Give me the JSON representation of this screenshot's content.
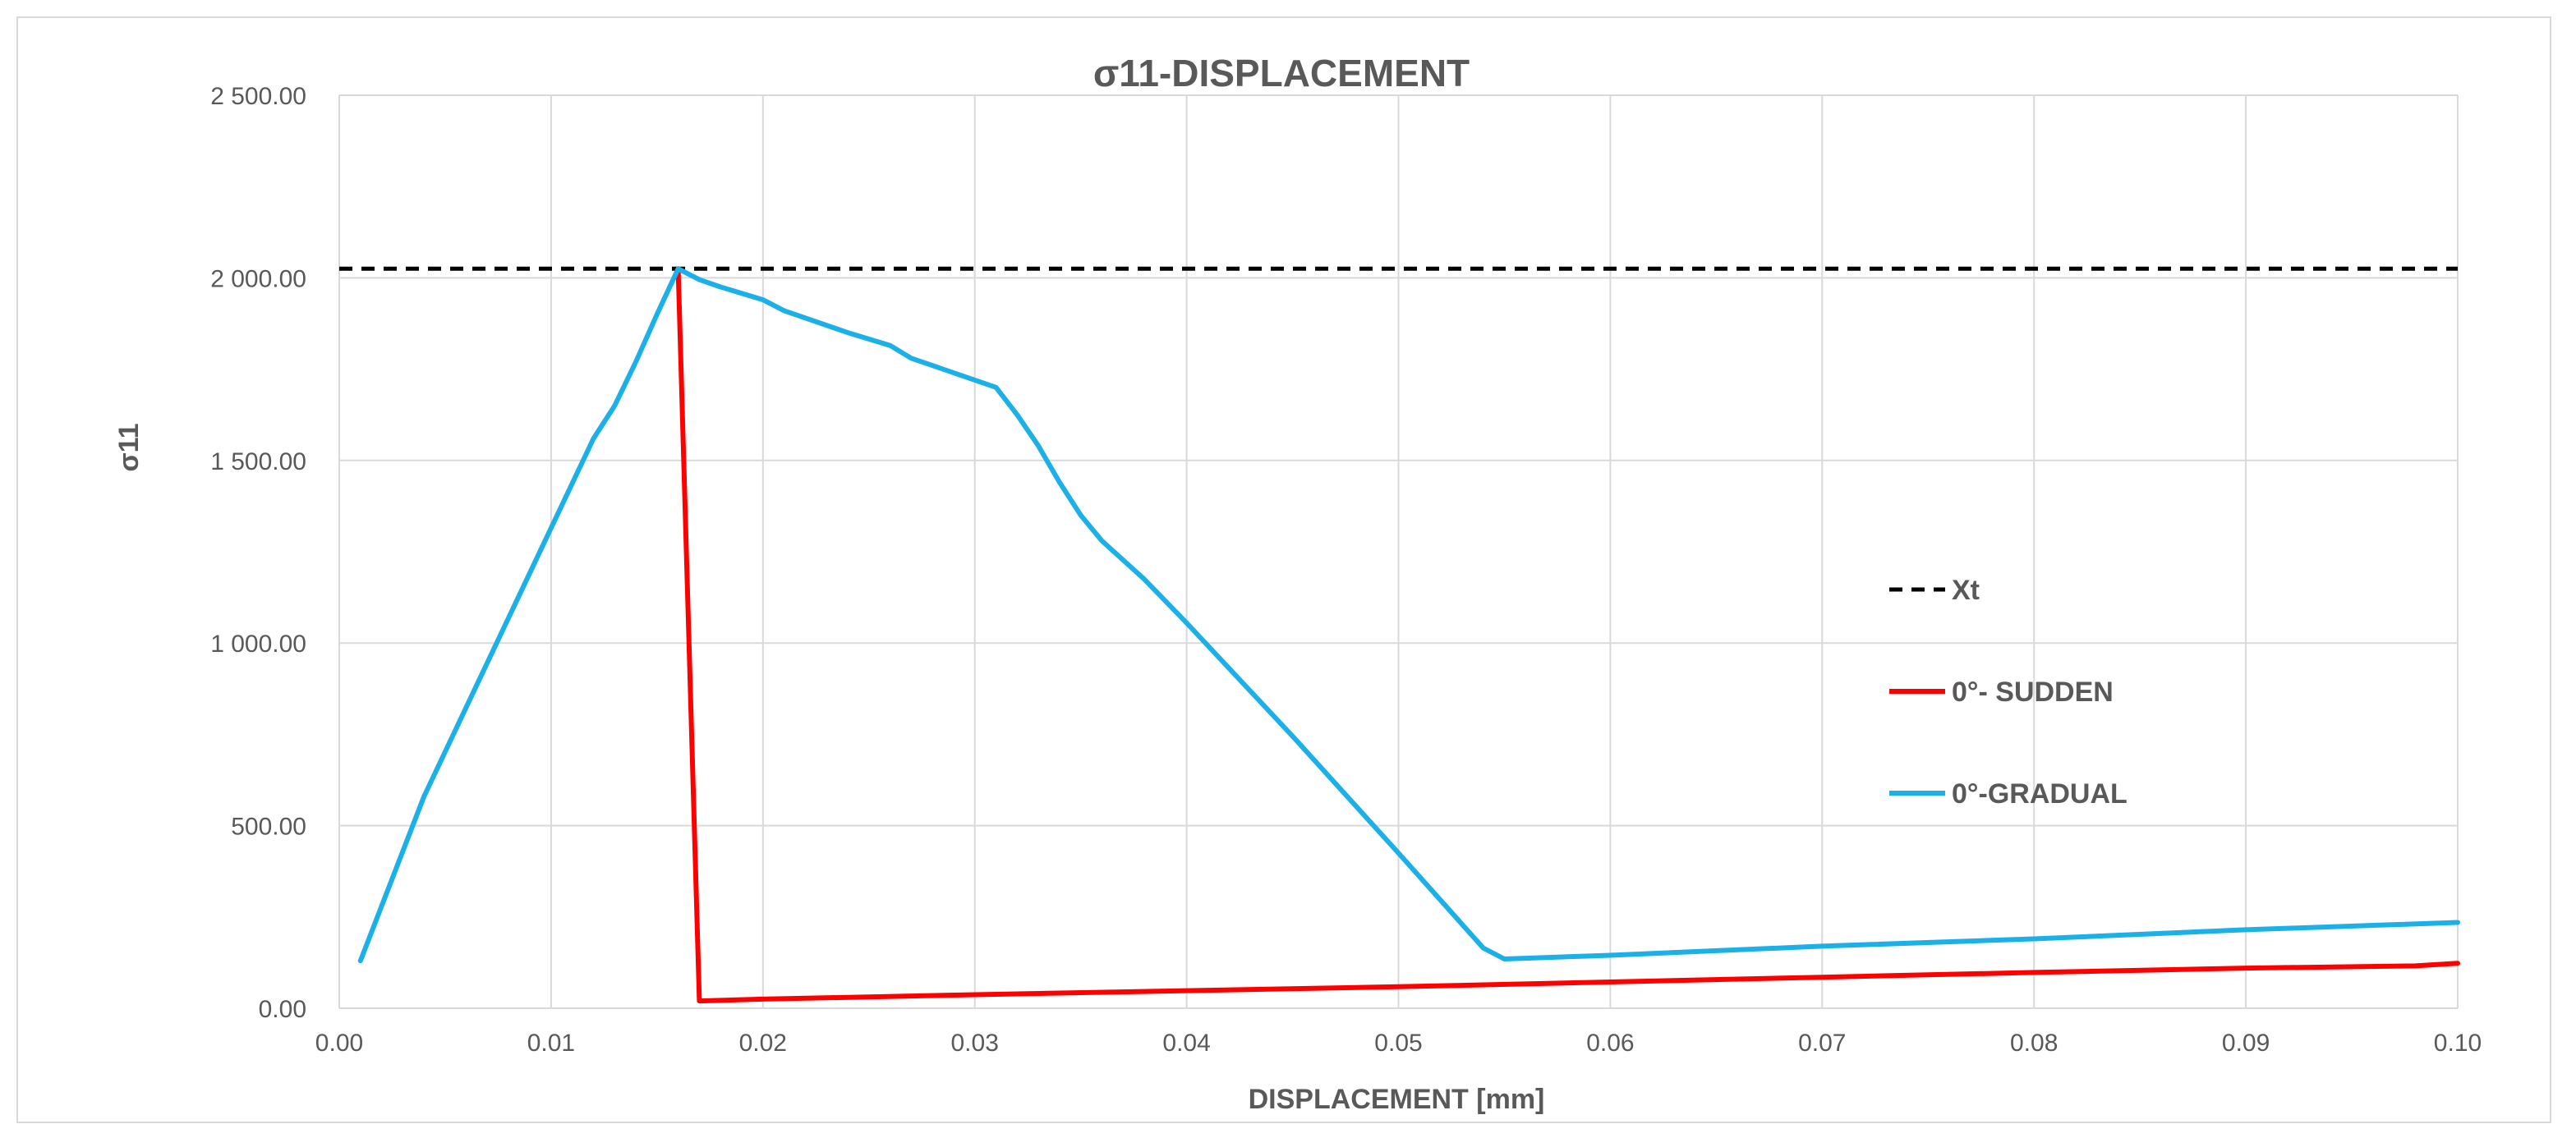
{
  "chart_data": {
    "type": "line",
    "title": "σ11-DISPLACEMENT",
    "xlabel": "DISPLACEMENT [mm]",
    "ylabel": "σ11",
    "xlim": [
      0,
      0.1
    ],
    "ylim": [
      0,
      2500
    ],
    "x_ticks": [
      0,
      0.01,
      0.02,
      0.03,
      0.04,
      0.05,
      0.06,
      0.07,
      0.08,
      0.09,
      0.1
    ],
    "x_tick_labels": [
      "0.00",
      "0.01",
      "0.02",
      "0.03",
      "0.04",
      "0.05",
      "0.06",
      "0.07",
      "0.08",
      "0.09",
      "0.10"
    ],
    "y_ticks": [
      0,
      500,
      1000,
      1500,
      2000,
      2500
    ],
    "y_tick_labels": [
      "0.00",
      "500.00",
      "1 000.00",
      "1 500.00",
      "2 000.00",
      "2 500.00"
    ],
    "grid": "vertical and horizontal",
    "legend_position": "right",
    "series": [
      {
        "name": "Xt",
        "color": "#000000",
        "style": "dashed",
        "x": [
          0,
          0.1
        ],
        "y": [
          2025,
          2025
        ]
      },
      {
        "name": "0°- SUDDEN",
        "color": "#ff0000",
        "style": "solid",
        "x": [
          0.016,
          0.017,
          0.02,
          0.03,
          0.04,
          0.05,
          0.06,
          0.07,
          0.08,
          0.09,
          0.098,
          0.1
        ],
        "y": [
          2025,
          20,
          25,
          37,
          48,
          59,
          72,
          85,
          98,
          110,
          116,
          123
        ]
      },
      {
        "name": "0°-GRADUAL",
        "color": "#1cb0e8",
        "style": "solid",
        "x": [
          0.001,
          0.004,
          0.008,
          0.012,
          0.013,
          0.014,
          0.015,
          0.016,
          0.017,
          0.018,
          0.02,
          0.021,
          0.024,
          0.026,
          0.027,
          0.03,
          0.031,
          0.032,
          0.033,
          0.034,
          0.035,
          0.036,
          0.038,
          0.04,
          0.045,
          0.05,
          0.054,
          0.055,
          0.06,
          0.07,
          0.08,
          0.09,
          0.1
        ],
        "y": [
          130,
          580,
          1070,
          1560,
          1650,
          1770,
          1900,
          2025,
          1995,
          1975,
          1940,
          1910,
          1850,
          1815,
          1780,
          1720,
          1700,
          1625,
          1540,
          1440,
          1350,
          1280,
          1175,
          1055,
          745,
          425,
          165,
          135,
          145,
          170,
          190,
          215,
          235
        ]
      }
    ]
  }
}
